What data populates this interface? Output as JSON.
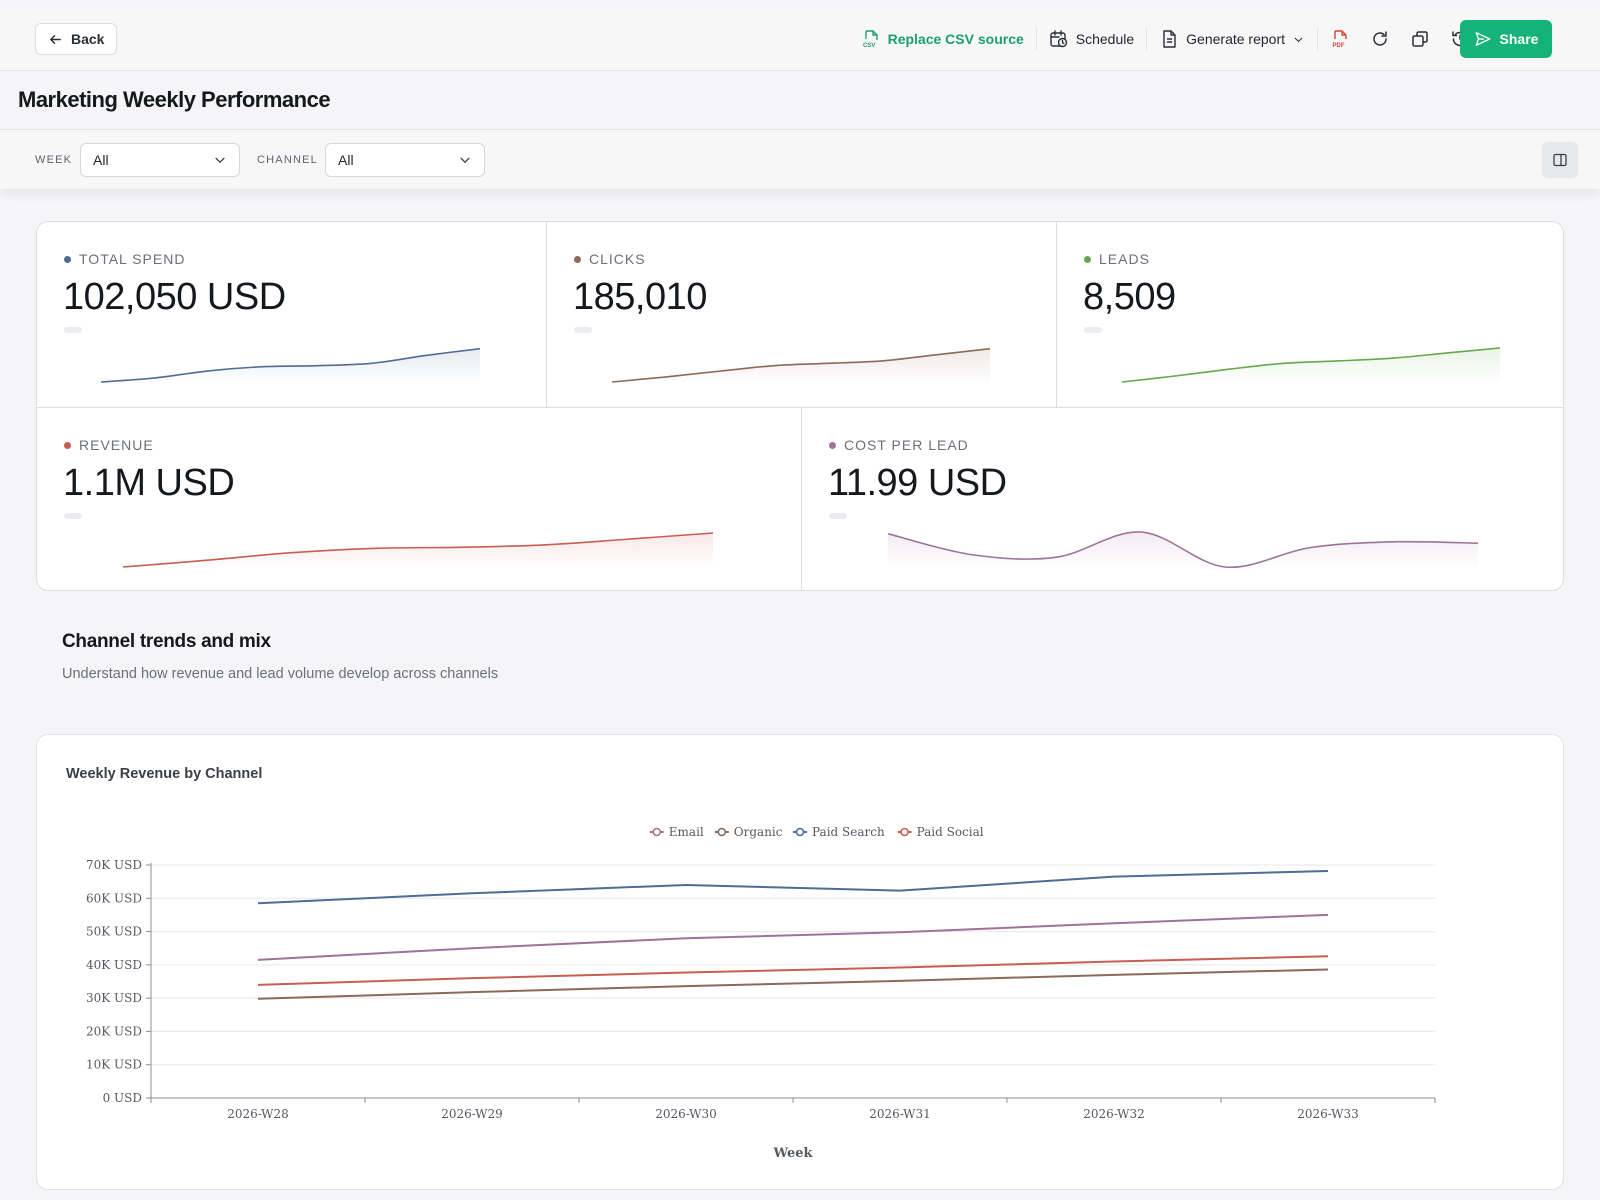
{
  "toolbar": {
    "back_label": "Back",
    "replace_csv_label": "Replace CSV source",
    "schedule_label": "Schedule",
    "generate_report_label": "Generate report",
    "share_label": "Share",
    "accent": "#15b37a"
  },
  "page": {
    "title": "Marketing Weekly Performance"
  },
  "filters": [
    {
      "label": "WEEK",
      "value": "All"
    },
    {
      "label": "CHANNEL",
      "value": "All"
    }
  ],
  "kpis": [
    {
      "label": "TOTAL SPEND",
      "value": "102,050 USD",
      "color": "#4f6c96",
      "trend": [
        0.0,
        0.12,
        0.33,
        0.45,
        0.48,
        0.55,
        0.78,
        0.98
      ]
    },
    {
      "label": "CLICKS",
      "value": "185,010",
      "color": "#8b6a58",
      "trend": [
        0.0,
        0.15,
        0.32,
        0.48,
        0.55,
        0.62,
        0.8,
        0.98
      ]
    },
    {
      "label": "LEADS",
      "value": "8,509",
      "color": "#66a84c",
      "trend": [
        0.0,
        0.18,
        0.38,
        0.55,
        0.62,
        0.7,
        0.85,
        1.0
      ]
    },
    {
      "label": "REVENUE",
      "value": "1.1M USD",
      "color": "#c85d52",
      "trend": [
        0.0,
        0.2,
        0.42,
        0.55,
        0.58,
        0.65,
        0.82,
        1.0
      ]
    },
    {
      "label": "COST PER LEAD",
      "value": "11.99 USD",
      "color": "#9e739a",
      "trend": [
        0.95,
        0.35,
        0.28,
        1.0,
        0.0,
        0.55,
        0.72,
        0.68
      ]
    }
  ],
  "section": {
    "title": "Channel trends and mix",
    "subtitle": "Understand how revenue and lead volume develop across channels"
  },
  "chart_title": "Weekly Revenue by Channel",
  "chart_data": {
    "type": "line",
    "title": "Weekly Revenue by Channel",
    "xlabel": "Week",
    "ylabel": "",
    "x": [
      "2026-W28",
      "2026-W29",
      "2026-W30",
      "2026-W31",
      "2026-W32",
      "2026-W33"
    ],
    "ylim": [
      0,
      70000
    ],
    "yticks": [
      0,
      10000,
      20000,
      30000,
      40000,
      50000,
      60000,
      70000
    ],
    "ytick_labels": [
      "0 USD",
      "10K USD",
      "20K USD",
      "30K USD",
      "40K USD",
      "50K USD",
      "60K USD",
      "70K USD"
    ],
    "legend_position": "top-center",
    "grid": true,
    "series": [
      {
        "name": "Email",
        "color": "#9e739a",
        "values": [
          41500,
          45000,
          48000,
          49800,
          52500,
          55000
        ]
      },
      {
        "name": "Organic",
        "color": "#8b6a58",
        "values": [
          29800,
          31800,
          33600,
          35200,
          37000,
          38600
        ]
      },
      {
        "name": "Paid Search",
        "color": "#4f6c96",
        "values": [
          58500,
          61500,
          64000,
          62300,
          66500,
          68200
        ]
      },
      {
        "name": "Paid Social",
        "color": "#c85d52",
        "values": [
          34000,
          36000,
          37700,
          39200,
          41000,
          42600
        ]
      }
    ]
  }
}
